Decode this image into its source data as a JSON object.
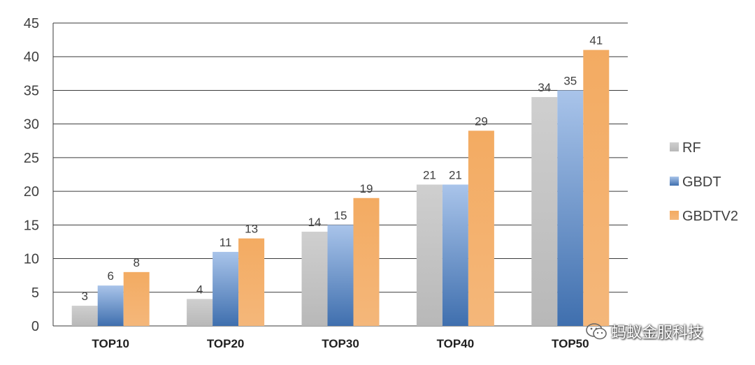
{
  "chart_data": {
    "type": "bar",
    "categories": [
      "TOP10",
      "TOP20",
      "TOP30",
      "TOP40",
      "TOP50"
    ],
    "series": [
      {
        "name": "RF",
        "values": [
          3,
          4,
          14,
          21,
          34
        ],
        "color": "#c0c0c0"
      },
      {
        "name": "GBDT",
        "values": [
          6,
          11,
          15,
          21,
          35
        ],
        "color": "#4f7fbf"
      },
      {
        "name": "GBDTV2",
        "values": [
          8,
          13,
          19,
          29,
          41
        ],
        "color": "#f0a55c"
      }
    ],
    "ylim": [
      0,
      45
    ],
    "yticks": [
      0,
      5,
      10,
      15,
      20,
      25,
      30,
      35,
      40,
      45
    ],
    "grid": true,
    "legend_position": "right",
    "data_labels": true
  },
  "watermark": {
    "text": "蚂蚁金服科技",
    "icon": "wechat-icon"
  }
}
